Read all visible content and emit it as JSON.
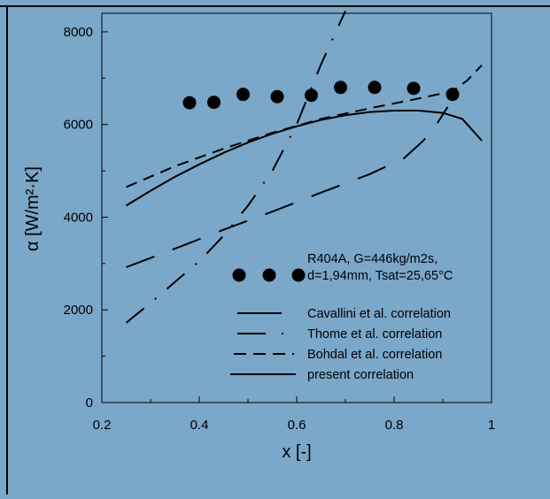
{
  "colors": {
    "background": "#7ba7c9",
    "ink": "#000000"
  },
  "chart_data": {
    "type": "line",
    "title": "",
    "xlabel": "x [-]",
    "ylabel": "α [W/m²·K]",
    "xlim": [
      0.2,
      1.0
    ],
    "ylim": [
      0,
      8400
    ],
    "x_ticks": [
      "0.2",
      "0.4",
      "0.6",
      "0.8",
      "1"
    ],
    "y_ticks": [
      "0",
      "2000",
      "4000",
      "6000",
      "8000"
    ],
    "grid": false,
    "legend_position": "bottom-right",
    "series": [
      {
        "name": "R404A, G=446kg/m2s, d=1,94mm, Tsat=25,65°C",
        "style": "scatter",
        "x": [
          0.38,
          0.43,
          0.49,
          0.56,
          0.63,
          0.69,
          0.76,
          0.84,
          0.92
        ],
        "y": [
          6470,
          6480,
          6650,
          6600,
          6630,
          6800,
          6800,
          6780,
          6650
        ]
      },
      {
        "name": "Cavallini et al. correlation",
        "style": "long-dash",
        "x": [
          0.25,
          0.35,
          0.45,
          0.55,
          0.65,
          0.75,
          0.82,
          0.86,
          0.89,
          0.91
        ],
        "y": [
          2920,
          3320,
          3730,
          4120,
          4530,
          4930,
          5270,
          5650,
          6050,
          6380
        ]
      },
      {
        "name": "Thome et al. correlation",
        "style": "dash-dot",
        "x": [
          0.25,
          0.3,
          0.35,
          0.4,
          0.45,
          0.5,
          0.55,
          0.6,
          0.65,
          0.7
        ],
        "y": [
          1720,
          2150,
          2600,
          3050,
          3600,
          4250,
          5000,
          6000,
          7300,
          8450
        ]
      },
      {
        "name": "Bohdal et al. correlation",
        "style": "short-dash",
        "x": [
          0.25,
          0.35,
          0.45,
          0.55,
          0.65,
          0.75,
          0.85,
          0.92,
          0.95,
          0.98
        ],
        "y": [
          4650,
          5100,
          5480,
          5820,
          6120,
          6350,
          6560,
          6720,
          6950,
          7280
        ]
      },
      {
        "name": "present correlation",
        "style": "solid",
        "x": [
          0.25,
          0.3,
          0.35,
          0.4,
          0.45,
          0.5,
          0.55,
          0.6,
          0.65,
          0.7,
          0.75,
          0.8,
          0.85,
          0.9,
          0.94,
          0.98
        ],
        "y": [
          4250,
          4570,
          4870,
          5140,
          5390,
          5610,
          5800,
          5960,
          6100,
          6200,
          6270,
          6300,
          6300,
          6250,
          6120,
          5650
        ]
      }
    ]
  }
}
